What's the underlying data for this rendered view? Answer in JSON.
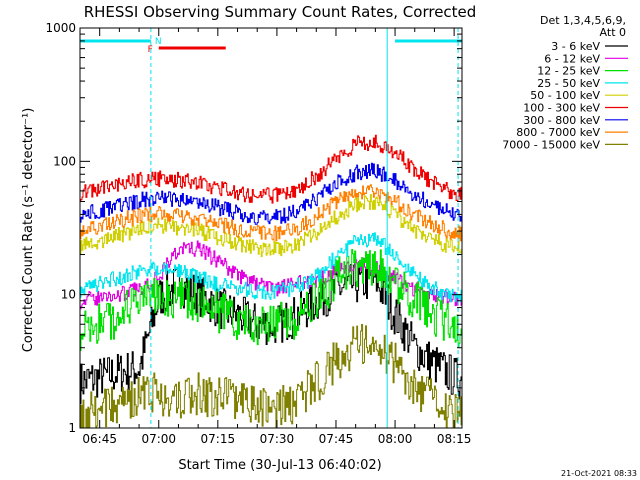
{
  "chart_data": {
    "type": "line",
    "title": "RHESSI Observing Summary Count Rates, Corrected",
    "ylabel": "Corrected Count Rate (s⁻¹ detector⁻¹)",
    "xlabel": "Start Time (30-Jul-13 06:40:02)",
    "yscale": "log",
    "ylim": [
      1,
      1000
    ],
    "xlim": [
      "06:40",
      "08:17"
    ],
    "x_ticks": [
      "06:45",
      "07:00",
      "07:15",
      "07:30",
      "07:45",
      "08:00",
      "08:15"
    ],
    "y_ticks": [
      "1",
      "10",
      "100",
      "1000"
    ],
    "legend_header": [
      "Det 1,3,4,5,6,9,",
      "Att 0"
    ],
    "legend_position": "right",
    "timestamp": "21-Oct-2021 08:33",
    "flag_labels": {
      "flare": "F",
      "night": "N"
    },
    "flag_bars": [
      {
        "flag": "night",
        "color": "#00e5ee",
        "start": "06:40",
        "end": "06:58"
      },
      {
        "flag": "night",
        "color": "#00e5ee",
        "start": "08:00",
        "end": "08:17"
      },
      {
        "flag": "flare",
        "color": "#ee0000",
        "start": "07:00",
        "end": "07:17"
      }
    ],
    "vertical_lines": [
      {
        "time": "06:58",
        "style": "dashed",
        "color": "#00e5ee"
      },
      {
        "time": "07:58",
        "style": "solid",
        "color": "#00e5ee"
      },
      {
        "time": "08:16",
        "style": "dashed",
        "color": "#00e5ee"
      }
    ],
    "x": [
      "06:40",
      "06:45",
      "06:50",
      "06:55",
      "07:00",
      "07:05",
      "07:10",
      "07:15",
      "07:20",
      "07:25",
      "07:30",
      "07:35",
      "07:40",
      "07:45",
      "07:50",
      "07:55",
      "08:00",
      "08:05",
      "08:10",
      "08:15",
      "08:17"
    ],
    "series": [
      {
        "name": "3 - 6 keV",
        "color": "#000000",
        "values": [
          2.2,
          2.4,
          2.6,
          2.8,
          9.5,
          12,
          10,
          8,
          7,
          6,
          6,
          7,
          9,
          11,
          12,
          13,
          7,
          4,
          3,
          2.4,
          2.3
        ]
      },
      {
        "name": "6 - 12 keV",
        "color": "#e000e0",
        "values": [
          9,
          9.5,
          10,
          11,
          14,
          22,
          22,
          18,
          14,
          12,
          11,
          12,
          13,
          15,
          17,
          16,
          13,
          11,
          10,
          9.5,
          9.5
        ]
      },
      {
        "name": "12 - 25 keV",
        "color": "#00e000",
        "values": [
          5.5,
          6,
          7,
          8.5,
          10,
          9.5,
          8.5,
          7.5,
          6.5,
          6,
          6,
          6.5,
          9,
          13,
          16,
          17,
          13,
          9,
          7,
          5.8,
          5.5
        ]
      },
      {
        "name": "25 - 50 keV",
        "color": "#00e5ee",
        "values": [
          11,
          12,
          13.5,
          15,
          16,
          15,
          13.5,
          12,
          11,
          10.5,
          10.5,
          11.5,
          14,
          19,
          25,
          26,
          20,
          14,
          11,
          9.5,
          9.5
        ]
      },
      {
        "name": "50 - 100 keV",
        "color": "#d0d000",
        "values": [
          23,
          25,
          28,
          31,
          33,
          32,
          30,
          27,
          24,
          22,
          22,
          24,
          29,
          38,
          48,
          50,
          40,
          30,
          25,
          23,
          22
        ]
      },
      {
        "name": "100 - 300 keV",
        "color": "#ee0000",
        "values": [
          58,
          62,
          68,
          72,
          74,
          72,
          68,
          63,
          58,
          55,
          56,
          62,
          78,
          105,
          135,
          140,
          118,
          85,
          68,
          58,
          57
        ]
      },
      {
        "name": "300 - 800 keV",
        "color": "#0000ee",
        "values": [
          40,
          43,
          47,
          51,
          53,
          52,
          49,
          45,
          41,
          38,
          38,
          42,
          53,
          68,
          82,
          85,
          72,
          55,
          46,
          40,
          40
        ]
      },
      {
        "name": "800 - 7000 keV",
        "color": "#ff7f00",
        "values": [
          30,
          32,
          36,
          39,
          41,
          40,
          37,
          34,
          31,
          29,
          29,
          31,
          38,
          50,
          58,
          60,
          50,
          39,
          33,
          29,
          29
        ]
      },
      {
        "name": "7000 - 15000 keV",
        "color": "#808000",
        "values": [
          1.2,
          1.4,
          1.6,
          1.8,
          1.8,
          1.7,
          1.8,
          1.7,
          1.6,
          1.4,
          1.4,
          1.6,
          2.2,
          3.2,
          4.2,
          4.4,
          3.0,
          2.0,
          1.6,
          1.3,
          1.2
        ]
      }
    ]
  }
}
